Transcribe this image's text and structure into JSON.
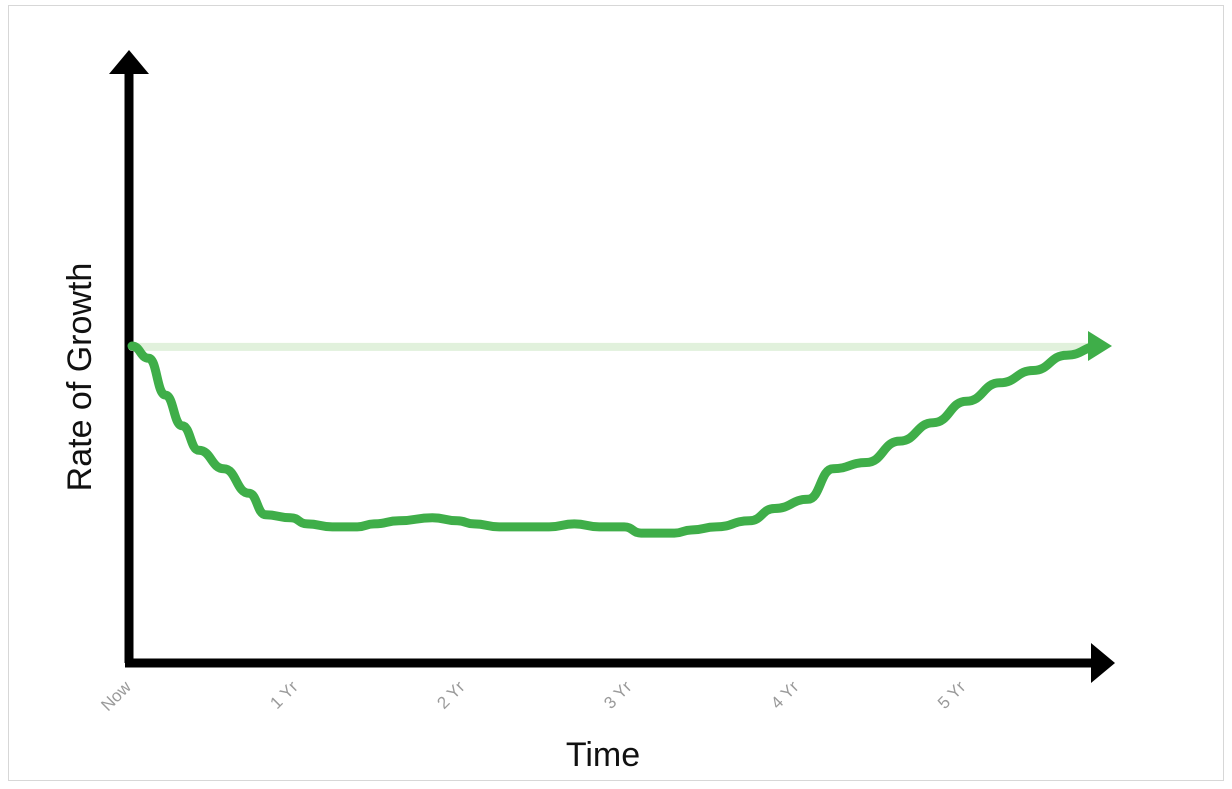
{
  "chart_data": {
    "type": "line",
    "title": "",
    "xlabel": "Time",
    "ylabel": "Rate of Growth",
    "x_tick_labels": [
      "Now",
      "1 Yr",
      "2 Yr",
      "3 Yr",
      "4 Yr",
      "5 Yr"
    ],
    "xlim": [
      0,
      5.8
    ],
    "ylim": [
      0,
      1
    ],
    "grid": false,
    "legend": "none",
    "series": [
      {
        "color": "#e1f1dc",
        "style": "reference-line",
        "x": [
          0,
          5.8
        ],
        "y": [
          0.997,
          0.997
        ]
      },
      {
        "color": "#3fae49",
        "style": "thick-line-with-arrow",
        "x": [
          0,
          0.1,
          0.2,
          0.3,
          0.4,
          0.55,
          0.7,
          0.8,
          0.95,
          1.05,
          1.2,
          1.35,
          1.45,
          1.6,
          1.8,
          1.95,
          2.05,
          2.2,
          2.4,
          2.5,
          2.65,
          2.8,
          2.95,
          3.05,
          3.15,
          3.25,
          3.35,
          3.5,
          3.7,
          3.85,
          4.05,
          4.2,
          4.4,
          4.6,
          4.8,
          5.0,
          5.2,
          5.4,
          5.6,
          5.8
        ],
        "y": [
          1.0,
          0.96,
          0.84,
          0.74,
          0.66,
          0.6,
          0.52,
          0.45,
          0.44,
          0.42,
          0.41,
          0.41,
          0.42,
          0.43,
          0.44,
          0.43,
          0.42,
          0.41,
          0.41,
          0.41,
          0.42,
          0.41,
          0.41,
          0.39,
          0.39,
          0.39,
          0.4,
          0.41,
          0.43,
          0.47,
          0.5,
          0.6,
          0.62,
          0.69,
          0.75,
          0.82,
          0.88,
          0.92,
          0.97,
          1.0
        ]
      }
    ]
  }
}
